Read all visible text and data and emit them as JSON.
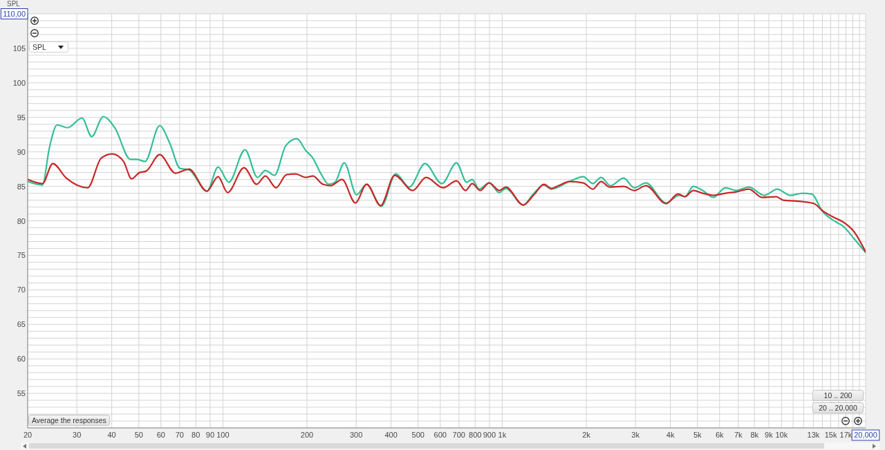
{
  "chart_data": {
    "type": "line",
    "ylabel": "SPL",
    "log": "x",
    "grid": true,
    "marker": "none",
    "line_style": "solid",
    "xlim": [
      20,
      20000
    ],
    "ylim": [
      50,
      110
    ],
    "xticks": [
      20,
      30,
      40,
      50,
      60,
      70,
      80,
      90,
      100,
      200,
      300,
      400,
      500,
      600,
      700,
      800,
      900,
      {
        "value": 1000,
        "label": "1k"
      },
      {
        "value": 2000,
        "label": "2k"
      },
      {
        "value": 3000,
        "label": "3k"
      },
      {
        "value": 4000,
        "label": "4k"
      },
      {
        "value": 5000,
        "label": "5k"
      },
      {
        "value": 6000,
        "label": "6k"
      },
      {
        "value": 7000,
        "label": "7k"
      },
      {
        "value": 8000,
        "label": "8k"
      },
      {
        "value": 9000,
        "label": "9k"
      },
      {
        "value": 10000,
        "label": "10k"
      },
      {
        "value": 11000,
        "label": null
      },
      {
        "value": 12000,
        "label": null
      },
      {
        "value": 13000,
        "label": "13k"
      },
      {
        "value": 14000,
        "label": null
      },
      {
        "value": 15000,
        "label": "15k"
      },
      {
        "value": 16000,
        "label": null
      },
      {
        "value": 17000,
        "label": "17k"
      },
      {
        "value": 18000,
        "label": null
      },
      {
        "value": 19000,
        "label": null
      },
      {
        "value": 20000,
        "label": "20,000"
      }
    ],
    "yticks": [
      {
        "value": 51,
        "label": null
      },
      {
        "value": 52,
        "label": null
      },
      {
        "value": 53,
        "label": null
      },
      {
        "value": 54,
        "label": null
      },
      55,
      {
        "value": 56,
        "label": null
      },
      {
        "value": 57,
        "label": null
      },
      {
        "value": 58,
        "label": null
      },
      {
        "value": 59,
        "label": null
      },
      60,
      {
        "value": 61,
        "label": null
      },
      {
        "value": 62,
        "label": null
      },
      {
        "value": 63,
        "label": null
      },
      {
        "value": 64,
        "label": null
      },
      65,
      {
        "value": 66,
        "label": null
      },
      {
        "value": 67,
        "label": null
      },
      {
        "value": 68,
        "label": null
      },
      {
        "value": 69,
        "label": null
      },
      70,
      {
        "value": 71,
        "label": null
      },
      {
        "value": 72,
        "label": null
      },
      {
        "value": 73,
        "label": null
      },
      {
        "value": 74,
        "label": null
      },
      75,
      {
        "value": 76,
        "label": null
      },
      {
        "value": 77,
        "label": null
      },
      {
        "value": 78,
        "label": null
      },
      {
        "value": 79,
        "label": null
      },
      80,
      {
        "value": 81,
        "label": null
      },
      {
        "value": 82,
        "label": null
      },
      {
        "value": 83,
        "label": null
      },
      {
        "value": 84,
        "label": null
      },
      85,
      {
        "value": 86,
        "label": null
      },
      {
        "value": 87,
        "label": null
      },
      {
        "value": 88,
        "label": null
      },
      {
        "value": 89,
        "label": null
      },
      90,
      {
        "value": 91,
        "label": null
      },
      {
        "value": 92,
        "label": null
      },
      {
        "value": 93,
        "label": null
      },
      {
        "value": 94,
        "label": null
      },
      95,
      {
        "value": 96,
        "label": null
      },
      {
        "value": 97,
        "label": null
      },
      {
        "value": 98,
        "label": null
      },
      {
        "value": 99,
        "label": null
      },
      100,
      {
        "value": 101,
        "label": null
      },
      {
        "value": 102,
        "label": null
      },
      {
        "value": 103,
        "label": null
      },
      {
        "value": 104,
        "label": null
      },
      105,
      {
        "value": 106,
        "label": null
      },
      {
        "value": 107,
        "label": null
      },
      {
        "value": 108,
        "label": null
      },
      {
        "value": 109,
        "label": null
      },
      {
        "value": 110,
        "label": "110,00"
      }
    ],
    "series": [
      {
        "color": "#33bf96",
        "x": [
          20,
          22.6,
          23.9,
          25.5,
          27.8,
          31.3,
          33.9,
          37.3,
          41,
          46.7,
          49.3,
          52.6,
          59.4,
          64.6,
          70.2,
          75.6,
          87.7,
          96.1,
          105,
          120,
          133,
          142,
          153,
          168,
          184,
          198,
          209,
          226,
          239,
          252,
          272,
          301,
          327,
          369,
          416,
          465,
          529,
          608,
          686,
          746,
          781,
          826,
          898,
          976,
          1030,
          1190,
          1280,
          1410,
          1500,
          1740,
          1950,
          2110,
          2260,
          2440,
          2720,
          2970,
          3270,
          3860,
          4300,
          4510,
          4830,
          5220,
          5700,
          6290,
          6870,
          7640,
          8670,
          9660,
          10750,
          11860,
          12820,
          13990,
          15580,
          16510,
          18200,
          20000
        ],
        "values": [
          85.7,
          85.2,
          90.5,
          93.9,
          93.5,
          94.9,
          92.2,
          95.1,
          93.5,
          88.9,
          88.9,
          88.6,
          93.8,
          91.2,
          87.6,
          87.4,
          84.3,
          87.8,
          85.6,
          90.3,
          86.3,
          87.3,
          86.6,
          90.9,
          91.9,
          90.2,
          89.2,
          86.6,
          85.3,
          85.6,
          88.4,
          83.8,
          85.3,
          82.1,
          86.8,
          84.9,
          88.3,
          85.4,
          88.4,
          85.6,
          86.0,
          84.6,
          85.5,
          84.1,
          84.7,
          82.3,
          83.7,
          85.2,
          84.6,
          85.7,
          86.4,
          85.4,
          86.3,
          85.1,
          86.2,
          84.8,
          85.5,
          82.6,
          83.7,
          83.5,
          85.0,
          84.4,
          83.4,
          84.8,
          84.4,
          84.9,
          83.7,
          84.6,
          83.7,
          84.0,
          83.9,
          81.4,
          79.9,
          79.3,
          77.4,
          75.4
        ]
      },
      {
        "color": "#c82828",
        "x": [
          20,
          22.6,
          24.6,
          27.5,
          32.8,
          36.7,
          40.2,
          44.1,
          47.1,
          50.3,
          53.1,
          59.4,
          67.6,
          75.6,
          87.7,
          96.1,
          104,
          119,
          132,
          142,
          155,
          169,
          182,
          198,
          210,
          228,
          243,
          267,
          298,
          327,
          367,
          412,
          478,
          534,
          614,
          686,
          739,
          781,
          834,
          898,
          976,
          1030,
          1190,
          1300,
          1410,
          1500,
          1590,
          1740,
          1950,
          2110,
          2260,
          2420,
          2720,
          2970,
          3270,
          3860,
          4260,
          4510,
          4830,
          5220,
          5700,
          6290,
          6870,
          7640,
          8510,
          9570,
          10140,
          11860,
          13070,
          13990,
          15580,
          16510,
          18200,
          20000
        ],
        "values": [
          86.0,
          85.4,
          88.3,
          86.2,
          84.8,
          89.1,
          89.7,
          88.6,
          86.1,
          87.0,
          87.2,
          89.6,
          86.9,
          87.5,
          84.3,
          86.4,
          84.1,
          87.7,
          85.3,
          86.5,
          84.8,
          86.7,
          86.8,
          86.3,
          86.5,
          85.3,
          85.1,
          86.0,
          82.6,
          85.3,
          82.2,
          86.6,
          84.4,
          86.3,
          84.8,
          85.8,
          84.4,
          85.4,
          84.4,
          85.5,
          84.4,
          84.9,
          82.3,
          83.8,
          85.3,
          84.7,
          85.1,
          85.7,
          85.5,
          84.6,
          85.7,
          84.9,
          85.0,
          84.4,
          85.1,
          82.5,
          83.9,
          83.5,
          84.4,
          84.0,
          83.7,
          84.0,
          84.2,
          84.6,
          83.4,
          83.5,
          83.0,
          82.8,
          82.5,
          81.5,
          80.4,
          79.9,
          78.4,
          75.5
        ]
      }
    ],
    "annotations": [
      "SPL",
      "Average the responses",
      "10 .. 200",
      "20 .. 20.000"
    ]
  }
}
